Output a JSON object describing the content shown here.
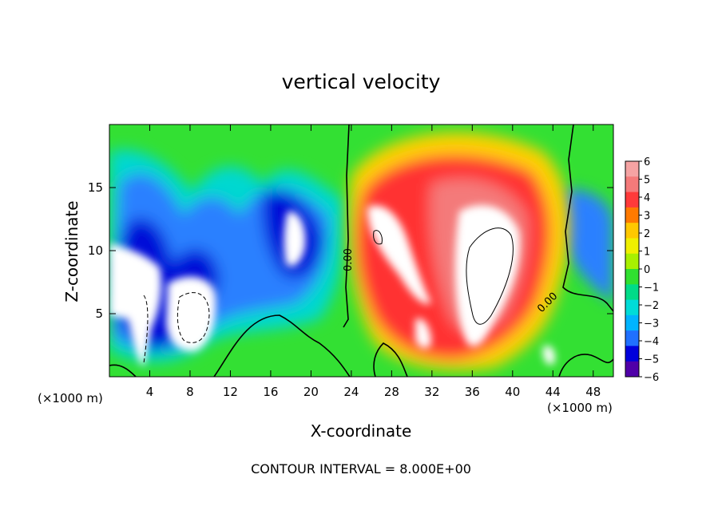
{
  "chart_data": {
    "type": "heatmap",
    "title": "vertical velocity",
    "xlabel": "X-coordinate",
    "ylabel": "Z-coordinate",
    "x_unit_label": "(×1000 m)",
    "x_ticks": [
      "4",
      "8",
      "12",
      "16",
      "20",
      "24",
      "28",
      "32",
      "36",
      "40",
      "44",
      "48"
    ],
    "x_tick_values": [
      4,
      8,
      12,
      16,
      20,
      24,
      28,
      32,
      36,
      40,
      44,
      48
    ],
    "y_ticks": [
      "5",
      "10",
      "15"
    ],
    "y_tick_values": [
      5,
      10,
      15
    ],
    "xlim": [
      0,
      50
    ],
    "ylim": [
      0,
      20
    ],
    "colorbar": {
      "labels": [
        "6",
        "5",
        "4",
        "3",
        "2",
        "1",
        "0",
        "−1",
        "−2",
        "−3",
        "−4",
        "−5",
        "−6"
      ],
      "range": [
        -6,
        6
      ],
      "colors": [
        "#f5a3a3",
        "#f47a7a",
        "#ff3a3a",
        "#ff7a00",
        "#ffc800",
        "#f0f000",
        "#a8f000",
        "#30e030",
        "#00dc88",
        "#00dcd8",
        "#00b4ff",
        "#2070ff",
        "#0000dc",
        "#5000a8"
      ]
    },
    "contour_label": "0.00",
    "contour_interval": "CONTOUR INTERVAL = 8.000E+00"
  }
}
